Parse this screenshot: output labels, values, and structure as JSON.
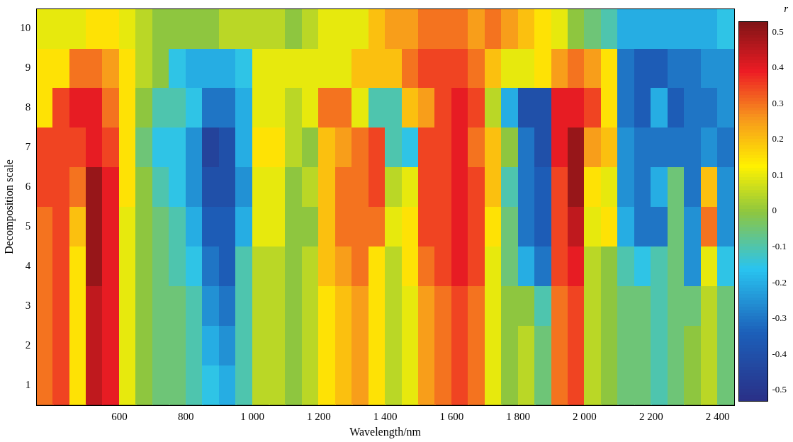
{
  "chart_data": {
    "type": "heatmap",
    "x_label": "Wavelength/nm",
    "y_label": "Decomposition scale",
    "x_edges": [
      350,
      400,
      450,
      500,
      550,
      600,
      650,
      700,
      750,
      800,
      850,
      900,
      950,
      1000,
      1050,
      1100,
      1150,
      1200,
      1250,
      1300,
      1350,
      1400,
      1450,
      1500,
      1550,
      1600,
      1650,
      1700,
      1750,
      1800,
      1850,
      1900,
      1950,
      2000,
      2050,
      2100,
      2150,
      2200,
      2250,
      2300,
      2350,
      2400,
      2450
    ],
    "y": [
      1,
      2,
      3,
      4,
      5,
      6,
      7,
      8,
      9,
      10
    ],
    "xlim": [
      350,
      2450
    ],
    "xticks": [
      600,
      800,
      {
        "value": 1000,
        "label": "1 000"
      },
      {
        "value": 1200,
        "label": "1 200"
      },
      {
        "value": 1400,
        "label": "1 400"
      },
      {
        "value": 1600,
        "label": "1 600"
      },
      {
        "value": 1800,
        "label": "1 800"
      },
      {
        "value": 2000,
        "label": "2 000"
      },
      {
        "value": 2200,
        "label": "2 200"
      },
      {
        "value": 2400,
        "label": "2 400"
      }
    ],
    "ylim": [
      0.5,
      10.5
    ],
    "yticks": [
      1,
      2,
      3,
      4,
      5,
      6,
      7,
      8,
      9,
      10
    ],
    "grid": false,
    "cells": [
      [
        0.3,
        0.35,
        0.15,
        0.45,
        0.4,
        0.1,
        0.0,
        -0.05,
        -0.05,
        -0.1,
        -0.15,
        -0.2,
        -0.1,
        0.05,
        0.05,
        0.0,
        0.05,
        0.15,
        0.2,
        0.25,
        0.15,
        0.05,
        0.1,
        0.25,
        0.3,
        0.35,
        0.3,
        0.1,
        0.0,
        0.05,
        -0.05,
        0.3,
        0.35,
        0.05,
        0.0,
        -0.05,
        -0.05,
        -0.1,
        -0.05,
        0.0,
        0.05,
        -0.05
      ],
      [
        0.3,
        0.35,
        0.15,
        0.45,
        0.4,
        0.1,
        0.0,
        -0.05,
        -0.05,
        -0.1,
        -0.2,
        -0.25,
        -0.1,
        0.05,
        0.05,
        0.0,
        0.05,
        0.15,
        0.2,
        0.25,
        0.15,
        0.05,
        0.1,
        0.25,
        0.3,
        0.35,
        0.3,
        0.1,
        0.0,
        0.05,
        -0.05,
        0.3,
        0.35,
        0.05,
        0.0,
        -0.05,
        -0.05,
        -0.1,
        -0.05,
        0.0,
        0.05,
        -0.05
      ],
      [
        0.3,
        0.35,
        0.15,
        0.45,
        0.4,
        0.1,
        0.0,
        -0.05,
        -0.05,
        -0.1,
        -0.25,
        -0.3,
        -0.1,
        0.05,
        0.05,
        0.0,
        0.05,
        0.15,
        0.2,
        0.25,
        0.15,
        0.05,
        0.1,
        0.25,
        0.3,
        0.35,
        0.3,
        0.1,
        0.0,
        0.0,
        -0.1,
        0.3,
        0.35,
        0.05,
        0.0,
        -0.05,
        -0.05,
        -0.1,
        -0.05,
        -0.05,
        0.05,
        -0.05
      ],
      [
        0.3,
        0.35,
        0.15,
        0.5,
        0.4,
        0.1,
        0.0,
        -0.05,
        -0.1,
        -0.15,
        -0.3,
        -0.35,
        -0.1,
        0.05,
        0.05,
        0.0,
        0.05,
        0.2,
        0.25,
        0.3,
        0.15,
        0.05,
        0.15,
        0.3,
        0.35,
        0.4,
        0.35,
        0.1,
        -0.05,
        -0.2,
        -0.3,
        0.35,
        0.4,
        0.05,
        0.0,
        -0.1,
        -0.15,
        -0.1,
        -0.05,
        -0.25,
        0.1,
        -0.15
      ],
      [
        0.3,
        0.35,
        0.2,
        0.5,
        0.4,
        0.1,
        0.0,
        -0.05,
        -0.1,
        -0.2,
        -0.35,
        -0.35,
        -0.2,
        0.1,
        0.1,
        0.0,
        0.0,
        0.2,
        0.3,
        0.3,
        0.3,
        0.1,
        0.15,
        0.35,
        0.35,
        0.4,
        0.35,
        0.15,
        -0.05,
        -0.3,
        -0.35,
        0.35,
        0.45,
        0.1,
        0.15,
        -0.2,
        -0.3,
        -0.3,
        -0.05,
        -0.25,
        0.3,
        -0.25
      ],
      [
        0.35,
        0.35,
        0.3,
        0.5,
        0.4,
        0.15,
        0.0,
        -0.1,
        -0.15,
        -0.25,
        -0.4,
        -0.4,
        -0.25,
        0.1,
        0.1,
        0.0,
        0.05,
        0.2,
        0.3,
        0.3,
        0.35,
        0.05,
        0.1,
        0.35,
        0.35,
        0.4,
        0.35,
        0.2,
        -0.1,
        -0.3,
        -0.35,
        0.35,
        0.5,
        0.15,
        0.1,
        -0.25,
        -0.3,
        -0.2,
        -0.05,
        -0.3,
        0.2,
        -0.25
      ],
      [
        0.35,
        0.35,
        0.35,
        0.4,
        0.35,
        0.15,
        -0.05,
        -0.15,
        -0.15,
        -0.25,
        -0.45,
        -0.4,
        -0.2,
        0.15,
        0.15,
        0.05,
        0.0,
        0.2,
        0.25,
        0.3,
        0.35,
        -0.1,
        -0.15,
        0.35,
        0.35,
        0.4,
        0.3,
        0.2,
        0.0,
        -0.3,
        -0.4,
        0.4,
        0.5,
        0.25,
        0.2,
        -0.25,
        -0.3,
        -0.3,
        -0.3,
        -0.3,
        -0.25,
        -0.3
      ],
      [
        0.15,
        0.35,
        0.4,
        0.4,
        0.3,
        0.15,
        0.0,
        -0.1,
        -0.1,
        -0.15,
        -0.3,
        -0.3,
        -0.2,
        0.1,
        0.1,
        0.05,
        0.1,
        0.3,
        0.3,
        0.1,
        -0.1,
        -0.1,
        0.2,
        0.25,
        0.35,
        0.4,
        0.35,
        0.05,
        -0.2,
        -0.4,
        -0.4,
        0.4,
        0.4,
        0.35,
        0.15,
        -0.3,
        -0.35,
        -0.2,
        -0.35,
        -0.3,
        -0.3,
        -0.25
      ],
      [
        0.15,
        0.15,
        0.3,
        0.3,
        0.25,
        0.15,
        0.05,
        0.0,
        -0.15,
        -0.2,
        -0.2,
        -0.2,
        -0.15,
        0.1,
        0.1,
        0.1,
        0.1,
        0.1,
        0.1,
        0.2,
        0.2,
        0.2,
        0.3,
        0.35,
        0.35,
        0.35,
        0.3,
        0.2,
        0.1,
        0.1,
        0.15,
        0.25,
        0.3,
        0.25,
        0.15,
        -0.3,
        -0.35,
        -0.35,
        -0.3,
        -0.3,
        -0.25,
        -0.25
      ],
      [
        0.1,
        0.1,
        0.1,
        0.15,
        0.15,
        0.1,
        0.05,
        0.0,
        0.0,
        0.0,
        0.0,
        0.05,
        0.05,
        0.05,
        0.05,
        0.0,
        0.05,
        0.1,
        0.1,
        0.1,
        0.2,
        0.25,
        0.25,
        0.3,
        0.3,
        0.3,
        0.25,
        0.3,
        0.25,
        0.2,
        0.15,
        0.1,
        0.0,
        -0.05,
        -0.1,
        -0.2,
        -0.2,
        -0.2,
        -0.2,
        -0.2,
        -0.2,
        -0.15
      ]
    ],
    "colorbar": {
      "label": "r",
      "range": [
        -0.53,
        0.53
      ],
      "ticks": [
        -0.5,
        -0.4,
        -0.3,
        -0.2,
        -0.1,
        0,
        0.1,
        0.2,
        0.3,
        0.4,
        0.5
      ]
    }
  }
}
